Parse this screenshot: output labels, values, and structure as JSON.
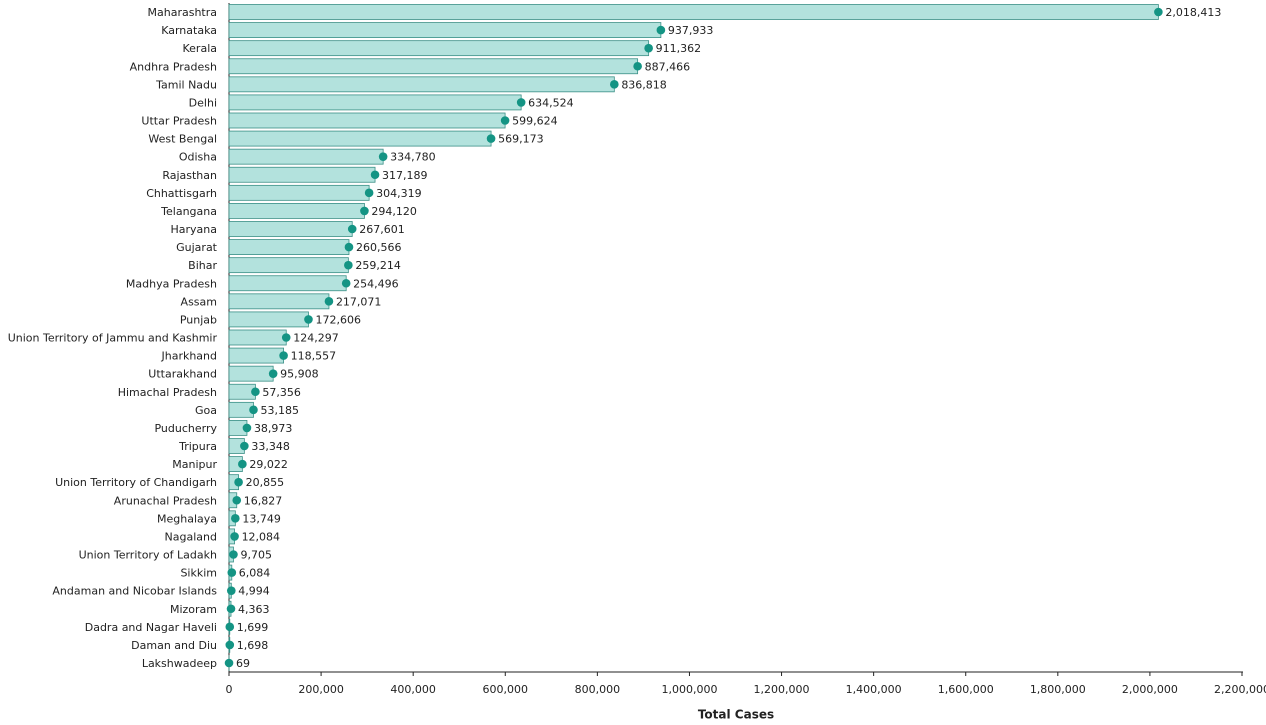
{
  "chart_data": {
    "type": "bar",
    "orientation": "horizontal",
    "xlabel": "Total Cases",
    "categories": [
      "Maharashtra",
      "Karnataka",
      "Kerala",
      "Andhra Pradesh",
      "Tamil Nadu",
      "Delhi",
      "Uttar Pradesh",
      "West Bengal",
      "Odisha",
      "Rajasthan",
      "Chhattisgarh",
      "Telangana",
      "Haryana",
      "Gujarat",
      "Bihar",
      "Madhya Pradesh",
      "Assam",
      "Punjab",
      "Union Territory of Jammu and Kashmir",
      "Jharkhand",
      "Uttarakhand",
      "Himachal Pradesh",
      "Goa",
      "Puducherry",
      "Tripura",
      "Manipur",
      "Union Territory of Chandigarh",
      "Arunachal Pradesh",
      "Meghalaya",
      "Nagaland",
      "Union Territory of Ladakh",
      "Sikkim",
      "Andaman and Nicobar Islands",
      "Mizoram",
      "Dadra and Nagar Haveli",
      "Daman and Diu",
      "Lakshwadeep"
    ],
    "values": [
      2018413,
      937933,
      911362,
      887466,
      836818,
      634524,
      599624,
      569173,
      334780,
      317189,
      304319,
      294120,
      267601,
      260566,
      259214,
      254496,
      217071,
      172606,
      124297,
      118557,
      95908,
      57356,
      53185,
      38973,
      33348,
      29022,
      20855,
      16827,
      13749,
      12084,
      9705,
      6084,
      4994,
      4363,
      1699,
      1698,
      69
    ],
    "value_labels": [
      "2,018,413",
      "937,933",
      "911,362",
      "887,466",
      "836,818",
      "634,524",
      "599,624",
      "569,173",
      "334,780",
      "317,189",
      "304,319",
      "294,120",
      "267,601",
      "260,566",
      "259,214",
      "254,496",
      "217,071",
      "172,606",
      "124,297",
      "118,557",
      "95,908",
      "57,356",
      "53,185",
      "38,973",
      "33,348",
      "29,022",
      "20,855",
      "16,827",
      "13,749",
      "12,084",
      "9,705",
      "6,084",
      "4,994",
      "4,363",
      "1,699",
      "1,698",
      "69"
    ],
    "color": "#b3e2dd",
    "marker_color": "#149484",
    "xlim": [
      0,
      2200000
    ],
    "xticks": [
      0,
      {
        "value": 200000,
        "label": "200,000"
      },
      {
        "value": 400000,
        "label": "400,000"
      },
      {
        "value": 600000,
        "label": "600,000"
      },
      {
        "value": 800000,
        "label": "800,000"
      },
      {
        "value": 1000000,
        "label": "1,000,000"
      },
      {
        "value": 1200000,
        "label": "1,200,000"
      },
      {
        "value": 1400000,
        "label": "1,400,000"
      },
      {
        "value": 1600000,
        "label": "1,600,000"
      },
      {
        "value": 1800000,
        "label": "1,800,000"
      },
      {
        "value": 2000000,
        "label": "2,000,000"
      },
      {
        "value": 2200000,
        "label": "2,200,000"
      }
    ]
  }
}
